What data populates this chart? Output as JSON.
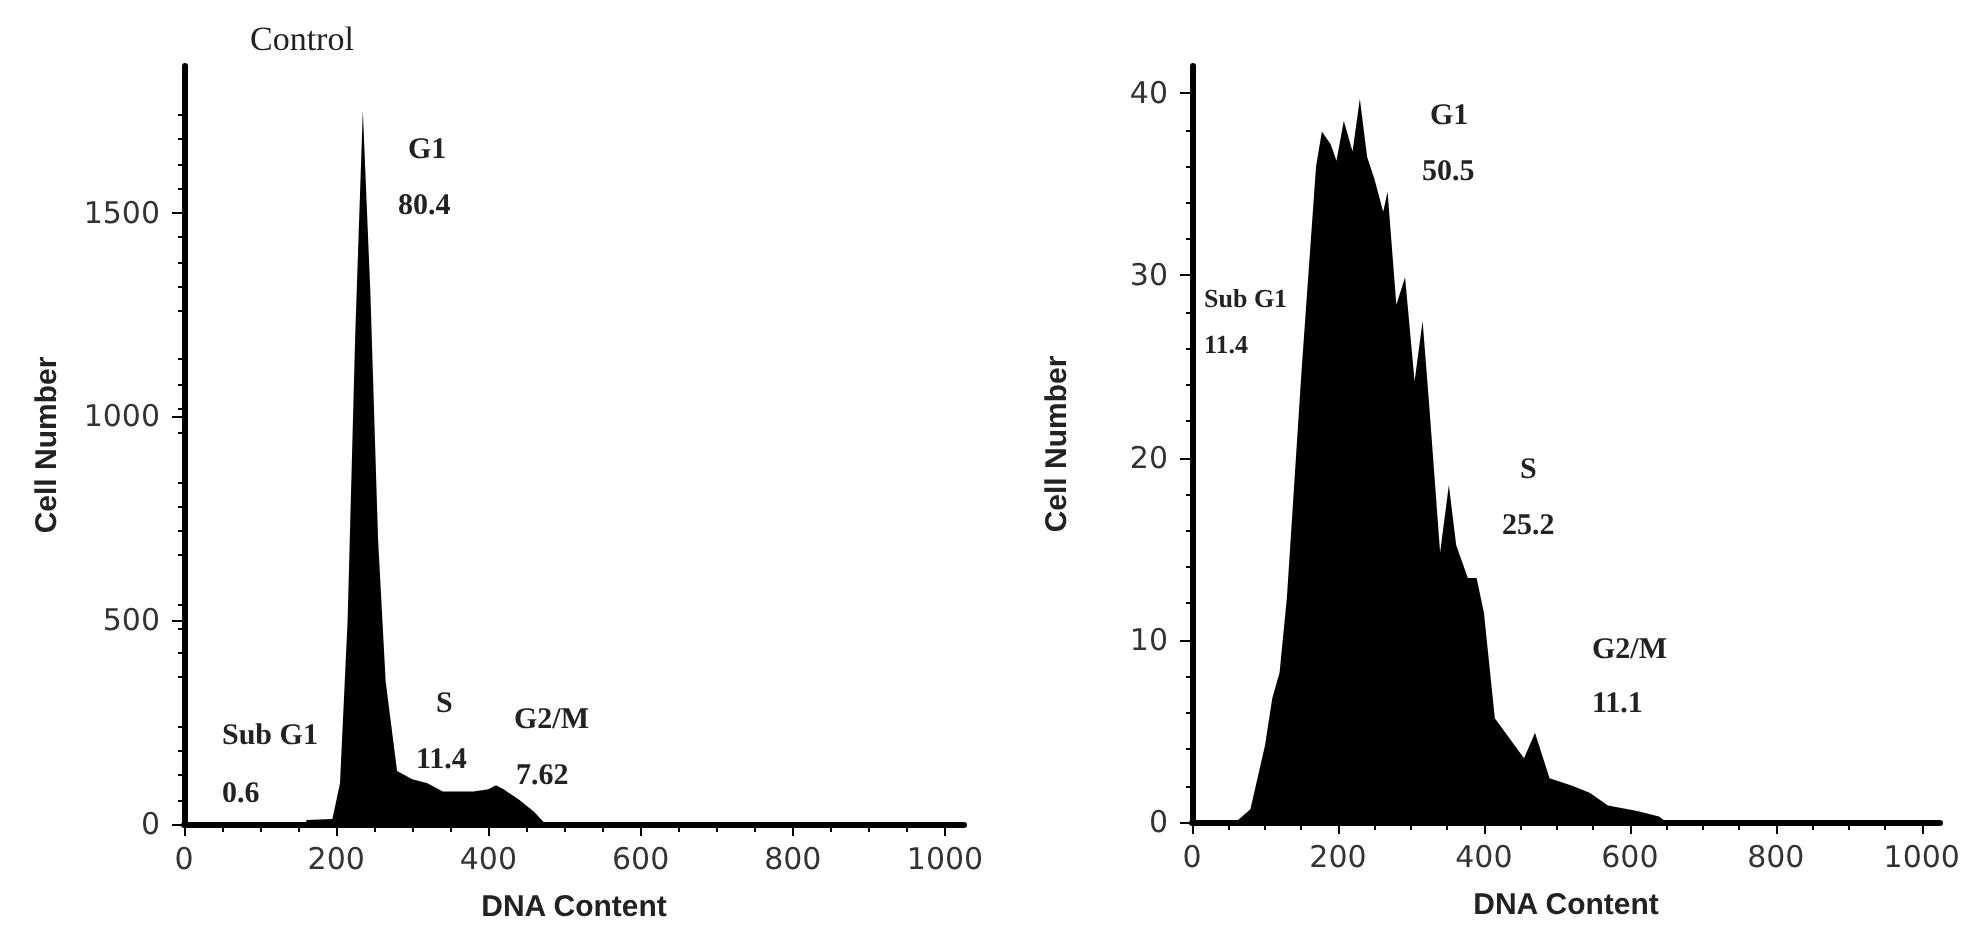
{
  "chart_data": [
    {
      "type": "area",
      "title": "Control",
      "xlabel": "DNA Content",
      "ylabel": "Cell Number",
      "color": "#000000",
      "grid": false,
      "marker": "none",
      "x": [
        0,
        160,
        161,
        195,
        205,
        215,
        225,
        235,
        245,
        255,
        265,
        280,
        300,
        320,
        340,
        380,
        400,
        410,
        420,
        440,
        460,
        475,
        1020
      ],
      "values": [
        0,
        0,
        10,
        12,
        100,
        500,
        1200,
        1750,
        1300,
        700,
        350,
        130,
        110,
        100,
        80,
        80,
        85,
        95,
        85,
        60,
        30,
        0,
        0
      ],
      "xlim": [
        0,
        1025
      ],
      "xticks": [
        0,
        200,
        400,
        600,
        800,
        1000
      ],
      "ylim": [
        0,
        1860
      ],
      "yticks": [
        0,
        500,
        1000,
        1500
      ],
      "annotations": [
        "G1",
        "80.4",
        "S",
        "11.4",
        "G2/M",
        "7.62",
        "Sub G1",
        "0.6"
      ]
    },
    {
      "type": "area",
      "xlabel": "DNA Content",
      "ylabel": "Cell Number",
      "color": "#000000",
      "grid": false,
      "marker": "none",
      "x": [
        0,
        60,
        80,
        100,
        110,
        120,
        130,
        150,
        170,
        178,
        190,
        198,
        208,
        220,
        230,
        240,
        250,
        262,
        268,
        280,
        292,
        305,
        316,
        325,
        340,
        352,
        362,
        378,
        390,
        400,
        415,
        435,
        455,
        470,
        490,
        520,
        545,
        570,
        610,
        640,
        650,
        1020
      ],
      "values": [
        0,
        0,
        0.7,
        4.2,
        6.8,
        8.2,
        12.3,
        24.7,
        36,
        37.9,
        37.2,
        36.3,
        38.5,
        36.8,
        39.7,
        36.5,
        35.3,
        33.5,
        34.6,
        28.4,
        29.9,
        24.2,
        27.5,
        22.9,
        14.8,
        18.5,
        15.2,
        13.4,
        13.4,
        11.5,
        5.7,
        4.6,
        3.5,
        4.9,
        2.4,
        2.0,
        1.6,
        0.9,
        0.6,
        0.3,
        0,
        0
      ],
      "xlim": [
        0,
        1025
      ],
      "xticks": [
        0,
        200,
        400,
        600,
        800,
        1000
      ],
      "ylim": [
        0,
        41.5
      ],
      "yticks": [
        0,
        10,
        20,
        30,
        40
      ],
      "annotations": [
        "G1",
        "50.5",
        "Sub G1",
        "11.4",
        "S",
        "25.2",
        "G2/M",
        "11.1"
      ]
    }
  ]
}
